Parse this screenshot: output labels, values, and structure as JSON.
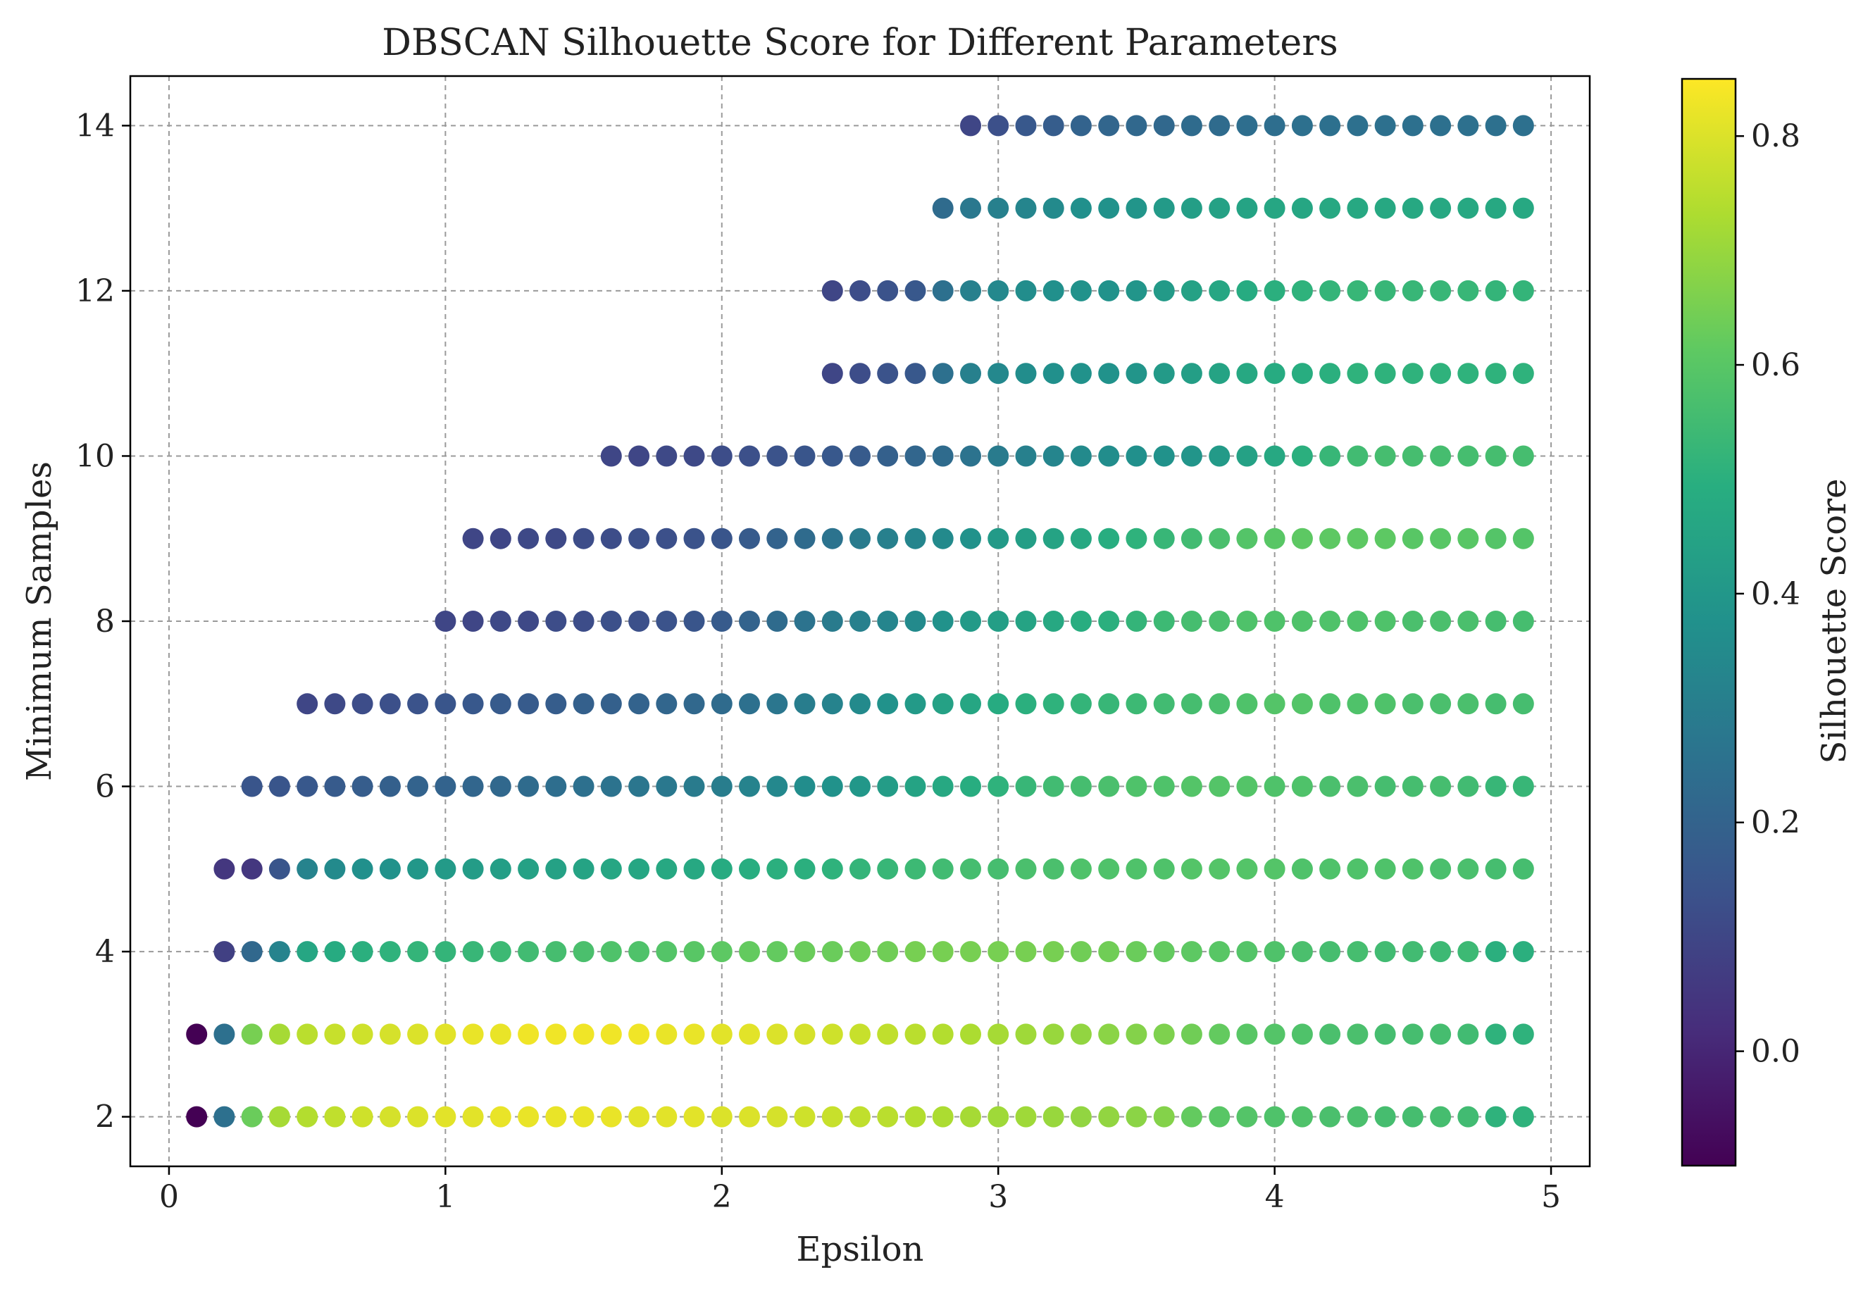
{
  "chart_data": {
    "type": "scatter",
    "title": "DBSCAN Silhouette Score for Different Parameters",
    "xlabel": "Epsilon",
    "ylabel": "Minimum Samples",
    "xlim": [
      -0.14,
      5.14
    ],
    "ylim": [
      1.4,
      14.6
    ],
    "xticks": [
      0,
      1,
      2,
      3,
      4,
      5
    ],
    "yticks": [
      2,
      4,
      6,
      8,
      10,
      12,
      14
    ],
    "x_tick_labels": [
      "0",
      "1",
      "2",
      "3",
      "4",
      "5"
    ],
    "y_tick_labels": [
      "2",
      "4",
      "6",
      "8",
      "10",
      "12",
      "14"
    ],
    "grid": true,
    "x_step": 0.1,
    "colormap": "viridis",
    "colorbar": {
      "label": "Silhouette Score",
      "range": [
        -0.1,
        0.85
      ],
      "ticks": [
        0.0,
        0.2,
        0.4,
        0.6,
        0.8
      ],
      "tick_labels": [
        "0.0",
        "0.2",
        "0.4",
        "0.6",
        "0.8"
      ]
    },
    "rows": [
      {
        "min_samples": 2,
        "eps_start": 0.1,
        "scores": [
          -0.1,
          0.25,
          0.63,
          0.72,
          0.74,
          0.76,
          0.78,
          0.79,
          0.8,
          0.81,
          0.81,
          0.82,
          0.82,
          0.82,
          0.82,
          0.82,
          0.81,
          0.81,
          0.81,
          0.8,
          0.8,
          0.79,
          0.78,
          0.77,
          0.76,
          0.75,
          0.74,
          0.73,
          0.72,
          0.71,
          0.71,
          0.7,
          0.69,
          0.69,
          0.68,
          0.67,
          0.62,
          0.6,
          0.59,
          0.58,
          0.58,
          0.57,
          0.57,
          0.56,
          0.56,
          0.56,
          0.55,
          0.51,
          0.51
        ]
      },
      {
        "min_samples": 3,
        "eps_start": 0.1,
        "scores": [
          -0.1,
          0.25,
          0.65,
          0.72,
          0.75,
          0.77,
          0.78,
          0.79,
          0.8,
          0.81,
          0.82,
          0.82,
          0.83,
          0.83,
          0.83,
          0.83,
          0.83,
          0.82,
          0.82,
          0.81,
          0.81,
          0.8,
          0.79,
          0.78,
          0.77,
          0.76,
          0.75,
          0.74,
          0.73,
          0.72,
          0.71,
          0.7,
          0.69,
          0.68,
          0.67,
          0.66,
          0.64,
          0.62,
          0.6,
          0.59,
          0.58,
          0.57,
          0.57,
          0.56,
          0.56,
          0.56,
          0.55,
          0.51,
          0.51
        ]
      },
      {
        "min_samples": 4,
        "eps_start": 0.2,
        "scores": [
          0.08,
          0.22,
          0.32,
          0.46,
          0.48,
          0.5,
          0.51,
          0.52,
          0.52,
          0.53,
          0.54,
          0.55,
          0.56,
          0.57,
          0.58,
          0.58,
          0.59,
          0.6,
          0.61,
          0.62,
          0.62,
          0.63,
          0.63,
          0.64,
          0.64,
          0.65,
          0.65,
          0.65,
          0.65,
          0.65,
          0.65,
          0.64,
          0.64,
          0.63,
          0.62,
          0.61,
          0.6,
          0.59,
          0.58,
          0.57,
          0.56,
          0.56,
          0.55,
          0.55,
          0.54,
          0.54,
          0.5,
          0.5
        ]
      },
      {
        "min_samples": 5,
        "eps_start": 0.2,
        "scores": [
          0.05,
          0.05,
          0.15,
          0.32,
          0.35,
          0.37,
          0.38,
          0.4,
          0.41,
          0.42,
          0.43,
          0.44,
          0.44,
          0.45,
          0.46,
          0.46,
          0.47,
          0.47,
          0.48,
          0.49,
          0.5,
          0.5,
          0.51,
          0.52,
          0.53,
          0.54,
          0.55,
          0.56,
          0.56,
          0.57,
          0.57,
          0.58,
          0.58,
          0.58,
          0.58,
          0.59,
          0.59,
          0.59,
          0.59,
          0.58,
          0.58,
          0.58,
          0.58,
          0.58,
          0.57,
          0.57,
          0.56,
          0.56
        ]
      },
      {
        "min_samples": 6,
        "eps_start": 0.3,
        "scores": [
          0.15,
          0.15,
          0.16,
          0.17,
          0.18,
          0.19,
          0.2,
          0.2,
          0.21,
          0.22,
          0.23,
          0.24,
          0.25,
          0.26,
          0.27,
          0.28,
          0.29,
          0.3,
          0.32,
          0.34,
          0.36,
          0.38,
          0.4,
          0.42,
          0.45,
          0.47,
          0.49,
          0.51,
          0.53,
          0.55,
          0.56,
          0.57,
          0.58,
          0.58,
          0.59,
          0.59,
          0.59,
          0.58,
          0.58,
          0.57,
          0.57,
          0.56,
          0.56,
          0.56,
          0.55,
          0.53,
          0.53
        ]
      },
      {
        "min_samples": 7,
        "eps_start": 0.5,
        "scores": [
          0.1,
          0.11,
          0.12,
          0.13,
          0.14,
          0.15,
          0.16,
          0.17,
          0.17,
          0.18,
          0.19,
          0.19,
          0.2,
          0.21,
          0.22,
          0.23,
          0.25,
          0.27,
          0.3,
          0.32,
          0.35,
          0.38,
          0.41,
          0.44,
          0.46,
          0.48,
          0.5,
          0.51,
          0.52,
          0.53,
          0.54,
          0.55,
          0.56,
          0.57,
          0.58,
          0.59,
          0.59,
          0.58,
          0.58,
          0.58,
          0.57,
          0.57,
          0.57,
          0.56,
          0.56
        ]
      },
      {
        "min_samples": 8,
        "eps_start": 1.0,
        "scores": [
          0.1,
          0.1,
          0.11,
          0.11,
          0.12,
          0.12,
          0.13,
          0.13,
          0.14,
          0.15,
          0.17,
          0.2,
          0.23,
          0.26,
          0.29,
          0.31,
          0.33,
          0.35,
          0.38,
          0.41,
          0.43,
          0.45,
          0.47,
          0.49,
          0.5,
          0.52,
          0.54,
          0.56,
          0.57,
          0.58,
          0.58,
          0.58,
          0.58,
          0.58,
          0.58,
          0.57,
          0.57,
          0.57,
          0.56,
          0.56
        ]
      },
      {
        "min_samples": 9,
        "eps_start": 1.1,
        "scores": [
          0.1,
          0.1,
          0.11,
          0.11,
          0.12,
          0.12,
          0.13,
          0.13,
          0.14,
          0.15,
          0.17,
          0.2,
          0.23,
          0.26,
          0.29,
          0.31,
          0.33,
          0.35,
          0.38,
          0.41,
          0.43,
          0.45,
          0.47,
          0.49,
          0.51,
          0.53,
          0.55,
          0.57,
          0.59,
          0.6,
          0.61,
          0.61,
          0.61,
          0.61,
          0.6,
          0.6,
          0.6,
          0.59,
          0.59
        ]
      },
      {
        "min_samples": 10,
        "eps_start": 1.6,
        "scores": [
          0.1,
          0.1,
          0.11,
          0.11,
          0.12,
          0.13,
          0.14,
          0.15,
          0.16,
          0.17,
          0.19,
          0.21,
          0.23,
          0.26,
          0.29,
          0.31,
          0.33,
          0.35,
          0.36,
          0.37,
          0.38,
          0.39,
          0.41,
          0.44,
          0.47,
          0.5,
          0.53,
          0.55,
          0.56,
          0.56,
          0.56,
          0.56,
          0.56,
          0.56
        ]
      },
      {
        "min_samples": 11,
        "eps_start": 2.4,
        "scores": [
          0.1,
          0.12,
          0.14,
          0.16,
          0.25,
          0.31,
          0.34,
          0.36,
          0.37,
          0.38,
          0.38,
          0.39,
          0.41,
          0.43,
          0.45,
          0.47,
          0.48,
          0.49,
          0.5,
          0.51,
          0.51,
          0.51,
          0.51,
          0.51,
          0.51,
          0.51
        ]
      },
      {
        "min_samples": 12,
        "eps_start": 2.4,
        "scores": [
          0.1,
          0.12,
          0.14,
          0.16,
          0.25,
          0.31,
          0.34,
          0.36,
          0.37,
          0.38,
          0.38,
          0.39,
          0.41,
          0.44,
          0.46,
          0.48,
          0.5,
          0.51,
          0.52,
          0.53,
          0.53,
          0.53,
          0.53,
          0.53,
          0.52,
          0.52
        ]
      },
      {
        "min_samples": 13,
        "eps_start": 2.8,
        "scores": [
          0.23,
          0.28,
          0.31,
          0.33,
          0.35,
          0.37,
          0.38,
          0.39,
          0.41,
          0.43,
          0.44,
          0.45,
          0.46,
          0.46,
          0.47,
          0.47,
          0.47,
          0.47,
          0.47,
          0.47,
          0.47,
          0.47
        ]
      },
      {
        "min_samples": 14,
        "eps_start": 2.9,
        "scores": [
          0.1,
          0.13,
          0.16,
          0.18,
          0.2,
          0.21,
          0.22,
          0.22,
          0.23,
          0.23,
          0.24,
          0.24,
          0.25,
          0.25,
          0.25,
          0.25,
          0.25,
          0.25,
          0.25,
          0.25,
          0.25
        ]
      }
    ]
  }
}
